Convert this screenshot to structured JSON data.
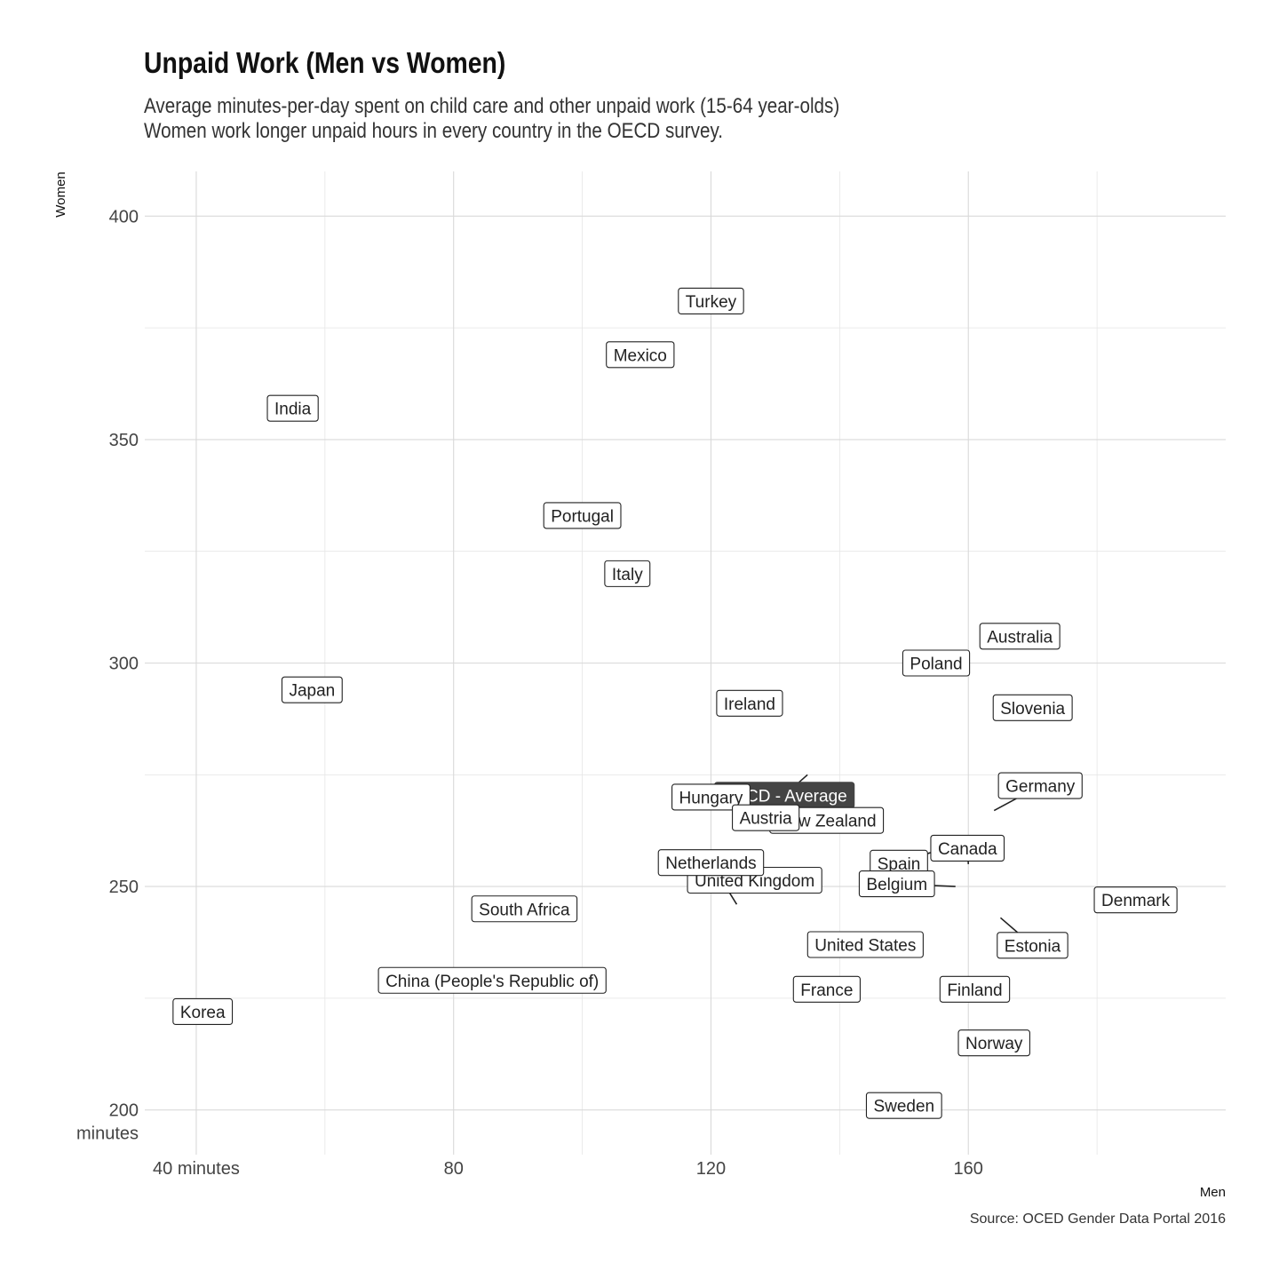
{
  "chart_data": {
    "type": "scatter",
    "title": "Unpaid Work (Men vs Women)",
    "subtitle": [
      "Average minutes-per-day spent on child care and other unpaid work (15-64 year-olds)",
      "Women work longer unpaid hours in every country in the OECD survey."
    ],
    "xlabel": "Men",
    "ylabel": "Women",
    "caption": "Source: OCED Gender Data Portal 2016",
    "xlim": [
      32,
      200
    ],
    "ylim": [
      190,
      410
    ],
    "x_ticks": [
      {
        "value": 40,
        "label": "40 minutes"
      },
      {
        "value": 80,
        "label": "80"
      },
      {
        "value": 120,
        "label": "120"
      },
      {
        "value": 160,
        "label": "160"
      }
    ],
    "y_ticks": [
      {
        "value": 200,
        "label": "200",
        "label2": "minutes"
      },
      {
        "value": 250,
        "label": "250"
      },
      {
        "value": 300,
        "label": "300"
      },
      {
        "value": 350,
        "label": "350"
      },
      {
        "value": 400,
        "label": "400"
      }
    ],
    "x_minor": [
      60,
      100,
      140,
      180
    ],
    "y_minor": [
      225,
      275,
      325,
      375
    ],
    "grid": true,
    "highlight_color": "#444444",
    "points": [
      {
        "label": "Turkey",
        "x": 120,
        "y": 381
      },
      {
        "label": "Mexico",
        "x": 109,
        "y": 369
      },
      {
        "label": "India",
        "x": 55,
        "y": 357
      },
      {
        "label": "Portugal",
        "x": 100,
        "y": 333
      },
      {
        "label": "Italy",
        "x": 107,
        "y": 320
      },
      {
        "label": "Australia",
        "x": 168,
        "y": 306
      },
      {
        "label": "Poland",
        "x": 155,
        "y": 300
      },
      {
        "label": "Japan",
        "x": 58,
        "y": 294
      },
      {
        "label": "Ireland",
        "x": 126,
        "y": 291
      },
      {
        "label": "Slovenia",
        "x": 170,
        "y": 290
      },
      {
        "label": "OECD - Average",
        "x": 135,
        "y": 275,
        "highlight": true
      },
      {
        "label": "Hungary",
        "x": 120,
        "y": 270
      },
      {
        "label": "Germany",
        "x": 164,
        "y": 267
      },
      {
        "label": "New Zealand",
        "x": 141,
        "y": 263
      },
      {
        "label": "Austria",
        "x": 135,
        "y": 264
      },
      {
        "label": "Spain",
        "x": 155,
        "y": 258
      },
      {
        "label": "Canada",
        "x": 160,
        "y": 255
      },
      {
        "label": "United Kingdom",
        "x": 137,
        "y": 253
      },
      {
        "label": "Belgium",
        "x": 158,
        "y": 250
      },
      {
        "label": "Denmark",
        "x": 186,
        "y": 247
      },
      {
        "label": "South Africa",
        "x": 91,
        "y": 245
      },
      {
        "label": "Netherlands",
        "x": 124,
        "y": 246
      },
      {
        "label": "Estonia",
        "x": 165,
        "y": 243
      },
      {
        "label": "United States",
        "x": 144,
        "y": 237
      },
      {
        "label": "China (People's Republic of)",
        "x": 86,
        "y": 229
      },
      {
        "label": "France",
        "x": 138,
        "y": 227
      },
      {
        "label": "Finland",
        "x": 161,
        "y": 227
      },
      {
        "label": "Korea",
        "x": 41,
        "y": 222
      },
      {
        "label": "Norway",
        "x": 164,
        "y": 215
      },
      {
        "label": "Sweden",
        "x": 150,
        "y": 201
      }
    ]
  }
}
